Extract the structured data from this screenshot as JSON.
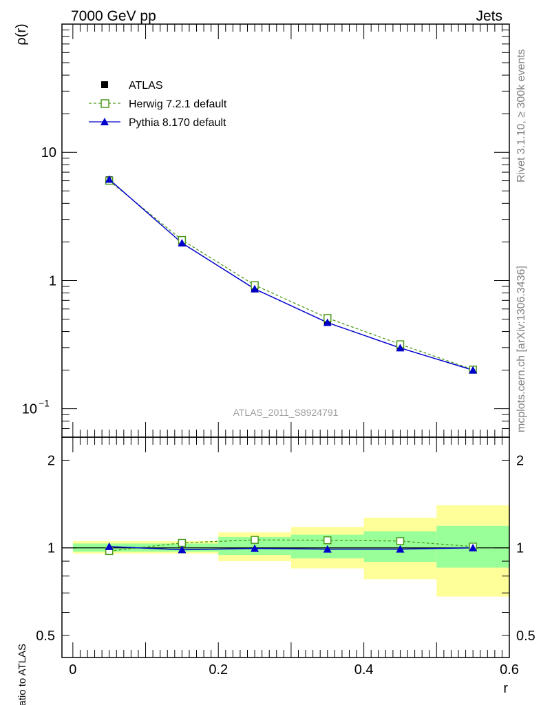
{
  "header": {
    "left": "7000 GeV pp",
    "right": "Jets"
  },
  "side_labels": {
    "rivet": "Rivet 3.1.10, ≥ 300k events",
    "mcplots": "mcplots.cern.ch [arXiv:1306.3436]"
  },
  "colors": {
    "herwig": "#4a9a1a",
    "pythia": "#0000cc",
    "atlas": "#000000",
    "band_outer": "#ffff99",
    "band_inner": "#99ff99"
  },
  "chart_data": [
    {
      "type": "line",
      "name": "main",
      "ylabel": "ρ(r)",
      "yscale": "log",
      "ylim": [
        0.06,
        100
      ],
      "xlim": [
        -0.015,
        0.6
      ],
      "y_tick_labels": [
        {
          "value": 10,
          "text": "10"
        },
        {
          "value": 1,
          "text": "1"
        },
        {
          "value": 0.1,
          "base": "10",
          "exp": "−1"
        }
      ],
      "watermark": "ATLAS_2011_S8924791",
      "legend": [
        {
          "name": "ATLAS",
          "marker": "filled-square"
        },
        {
          "name": "Herwig 7.2.1 default",
          "marker": "open-square",
          "line": "dashed"
        },
        {
          "name": "Pythia 8.170 default",
          "marker": "filled-triangle",
          "line": "solid"
        }
      ],
      "x": [
        0.05,
        0.15,
        0.25,
        0.35,
        0.45,
        0.55
      ],
      "series": [
        {
          "name": "ATLAS",
          "values": [
            6.1,
            2.0,
            0.86,
            0.475,
            0.3,
            0.2
          ]
        },
        {
          "name": "Herwig 7.2.1 default",
          "values": [
            6.0,
            2.07,
            0.92,
            0.51,
            0.318,
            0.202
          ]
        },
        {
          "name": "Pythia 8.170 default",
          "values": [
            6.15,
            1.96,
            0.86,
            0.47,
            0.298,
            0.2
          ]
        }
      ]
    },
    {
      "type": "line",
      "name": "ratio",
      "ylabel": "Ratio to ATLAS",
      "xlabel": "r",
      "yscale": "log",
      "ylim": [
        0.42,
        2.4
      ],
      "xlim": [
        -0.015,
        0.6
      ],
      "y_tick_labels": [
        {
          "value": 2,
          "text": "2"
        },
        {
          "value": 1,
          "text": "1"
        },
        {
          "value": 0.5,
          "text": "0.5"
        }
      ],
      "x_tick_labels": [
        "0",
        "0.2",
        "0.4",
        "0.6"
      ],
      "x_ticks": [
        0,
        0.2,
        0.4,
        0.6
      ],
      "bins": [
        [
          0.0,
          0.1
        ],
        [
          0.1,
          0.2
        ],
        [
          0.2,
          0.3
        ],
        [
          0.3,
          0.4
        ],
        [
          0.4,
          0.5
        ],
        [
          0.5,
          0.6
        ]
      ],
      "band_outer": [
        [
          0.955,
          1.055
        ],
        [
          0.955,
          1.055
        ],
        [
          0.9,
          1.13
        ],
        [
          0.85,
          1.18
        ],
        [
          0.78,
          1.27
        ],
        [
          0.68,
          1.4
        ]
      ],
      "band_inner": [
        [
          0.97,
          1.035
        ],
        [
          0.97,
          1.035
        ],
        [
          0.945,
          1.09
        ],
        [
          0.92,
          1.11
        ],
        [
          0.895,
          1.14
        ],
        [
          0.855,
          1.19
        ]
      ],
      "x": [
        0.05,
        0.15,
        0.25,
        0.35,
        0.45,
        0.55
      ],
      "series": [
        {
          "name": "Herwig 7.2.1 default",
          "values": [
            0.975,
            1.04,
            1.065,
            1.062,
            1.055,
            1.01
          ]
        },
        {
          "name": "Pythia 8.170 default",
          "values": [
            1.01,
            0.985,
            0.995,
            0.99,
            0.99,
            1.0
          ]
        }
      ]
    }
  ]
}
